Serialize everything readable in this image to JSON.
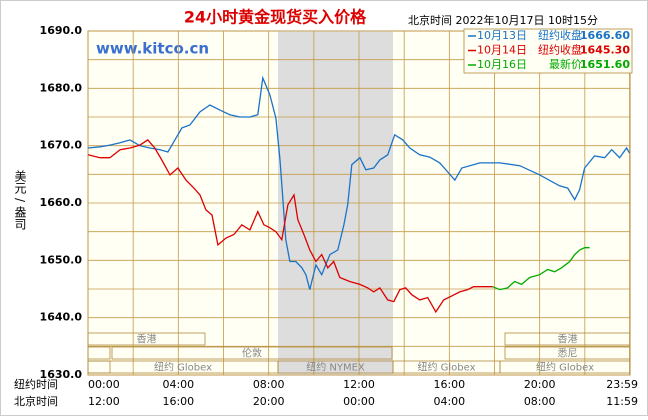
{
  "chart_data": {
    "type": "line",
    "title": "24小时黄金现货买入价格",
    "header": "北京时间  2022年10月17日 10时15分",
    "watermark": "www.kitco.cn",
    "ylabel": "美元 / 盎司",
    "xrow_labels": [
      "纽约时间",
      "北京时间"
    ],
    "xlim": [
      0,
      24
    ],
    "ylim": [
      1630,
      1690
    ],
    "yticks": [
      {
        "value": 1630,
        "label": "1630.0"
      },
      {
        "value": 1640,
        "label": "1640.0"
      },
      {
        "value": 1650,
        "label": "1650.0"
      },
      {
        "value": 1660,
        "label": "1660.0"
      },
      {
        "value": 1670,
        "label": "1670.0"
      },
      {
        "value": 1680,
        "label": "1680.0"
      },
      {
        "value": 1690,
        "label": "1690.0"
      }
    ],
    "yminor": [
      1635,
      1645,
      1655,
      1665,
      1675,
      1685
    ],
    "xticks": [
      {
        "value": 0,
        "label": "00:00"
      },
      {
        "value": 4,
        "label": "04:00"
      },
      {
        "value": 8,
        "label": "08:00"
      },
      {
        "value": 12,
        "label": "12:00"
      },
      {
        "value": 16,
        "label": "16:00"
      },
      {
        "value": 20,
        "label": "20:00"
      },
      {
        "value": 23.98,
        "label": "23:59"
      }
    ],
    "xticks_beijing": [
      "12:00",
      "16:00",
      "20:00",
      "00:00",
      "04:00",
      "08:00",
      "11:59"
    ],
    "xminor": [
      2,
      6,
      10,
      14,
      18,
      22
    ],
    "grid": true,
    "sessions": [
      "香港",
      "伦敦",
      "纽约 Globex",
      "纽约 NYMEX",
      "纽约 Globex",
      "香港",
      "悉尼",
      "纽约 Globex"
    ],
    "series": [
      {
        "name": "10月13日",
        "legend_label": "纽约收盘",
        "close": 1666.6,
        "close_label": "1666.60",
        "color": "#1a73c8",
        "x": [
          0,
          0.53,
          0.97,
          1.42,
          1.86,
          2.3,
          2.74,
          3.19,
          3.54,
          3.85,
          4.16,
          4.51,
          4.96,
          5.4,
          5.84,
          6.28,
          6.73,
          7.17,
          7.52,
          7.74,
          8.05,
          8.32,
          8.5,
          8.63,
          8.76,
          8.94,
          9.2,
          9.47,
          9.65,
          9.82,
          10.09,
          10.35,
          10.71,
          11.06,
          11.33,
          11.5,
          11.68,
          12.04,
          12.3,
          12.65,
          12.92,
          13.27,
          13.58,
          13.94,
          14.25,
          14.69,
          15.13,
          15.58,
          15.93,
          16.24,
          16.55,
          17.35,
          18.23,
          19.12,
          20,
          20.88,
          21.24,
          21.55,
          21.77,
          21.99,
          22.43,
          22.88,
          23.19,
          23.54,
          23.85,
          23.98
        ],
        "values": [
          1669.6,
          1669.8,
          1670.1,
          1670.5,
          1671.0,
          1670.0,
          1669.6,
          1669.3,
          1668.9,
          1671.0,
          1673.1,
          1673.6,
          1675.9,
          1677.1,
          1676.2,
          1675.4,
          1675.0,
          1675.0,
          1675.4,
          1681.8,
          1678.9,
          1674.8,
          1667.5,
          1660.6,
          1653.6,
          1649.8,
          1649.8,
          1648.7,
          1647.5,
          1644.9,
          1649.2,
          1647.5,
          1651.0,
          1651.8,
          1656.2,
          1659.7,
          1666.7,
          1667.9,
          1665.8,
          1666.1,
          1667.5,
          1668.4,
          1671.9,
          1671.0,
          1669.6,
          1668.4,
          1668.0,
          1667.0,
          1665.4,
          1664.0,
          1666.1,
          1667.0,
          1667.0,
          1666.5,
          1664.9,
          1663.0,
          1662.6,
          1660.6,
          1662.3,
          1666.1,
          1668.2,
          1667.9,
          1669.3,
          1667.9,
          1669.6,
          1668.7
        ]
      },
      {
        "name": "10月14日",
        "legend_label": "纽约收盘",
        "close": 1645.3,
        "close_label": "1645.30",
        "color": "#dd0000",
        "x": [
          0,
          0.53,
          0.97,
          1.42,
          1.86,
          2.3,
          2.65,
          2.96,
          3.27,
          3.63,
          3.98,
          4.34,
          4.69,
          4.96,
          5.22,
          5.49,
          5.75,
          6.11,
          6.46,
          6.81,
          7.17,
          7.52,
          7.79,
          8.05,
          8.32,
          8.58,
          8.85,
          9.12,
          9.29,
          9.56,
          9.82,
          10.09,
          10.35,
          10.62,
          10.88,
          11.15,
          11.59,
          12.04,
          12.39,
          12.65,
          12.92,
          13.27,
          13.54,
          13.81,
          14.07,
          14.34,
          14.69,
          15.04,
          15.4,
          15.75,
          16.11,
          16.46,
          16.81,
          17.08,
          17.92
        ],
        "values": [
          1668.4,
          1667.9,
          1667.9,
          1669.3,
          1669.6,
          1670.1,
          1671.0,
          1669.6,
          1667.5,
          1664.9,
          1666.1,
          1664.0,
          1662.6,
          1661.4,
          1658.8,
          1657.9,
          1652.7,
          1653.9,
          1654.5,
          1656.2,
          1655.3,
          1658.5,
          1656.2,
          1655.7,
          1655.0,
          1653.6,
          1659.7,
          1661.4,
          1657.1,
          1654.5,
          1651.8,
          1649.8,
          1651.0,
          1648.7,
          1649.8,
          1647.0,
          1646.3,
          1645.8,
          1645.2,
          1644.5,
          1645.2,
          1643.1,
          1642.8,
          1644.9,
          1645.2,
          1644.0,
          1643.1,
          1643.5,
          1641.0,
          1643.1,
          1643.8,
          1644.5,
          1644.9,
          1645.4,
          1645.4
        ]
      },
      {
        "name": "10月16日",
        "legend_label": "最新价",
        "close": 1651.6,
        "close_label": "1651.60",
        "color": "#00aa00",
        "x": [
          17.92,
          18.23,
          18.58,
          18.89,
          19.2,
          19.56,
          20,
          20.35,
          20.66,
          20.97,
          21.33,
          21.55,
          21.77,
          21.99,
          22.21
        ],
        "values": [
          1645.4,
          1644.9,
          1645.2,
          1646.3,
          1645.8,
          1647.0,
          1647.5,
          1648.4,
          1648.0,
          1648.7,
          1649.8,
          1651.0,
          1651.8,
          1652.2,
          1652.2
        ]
      }
    ]
  }
}
